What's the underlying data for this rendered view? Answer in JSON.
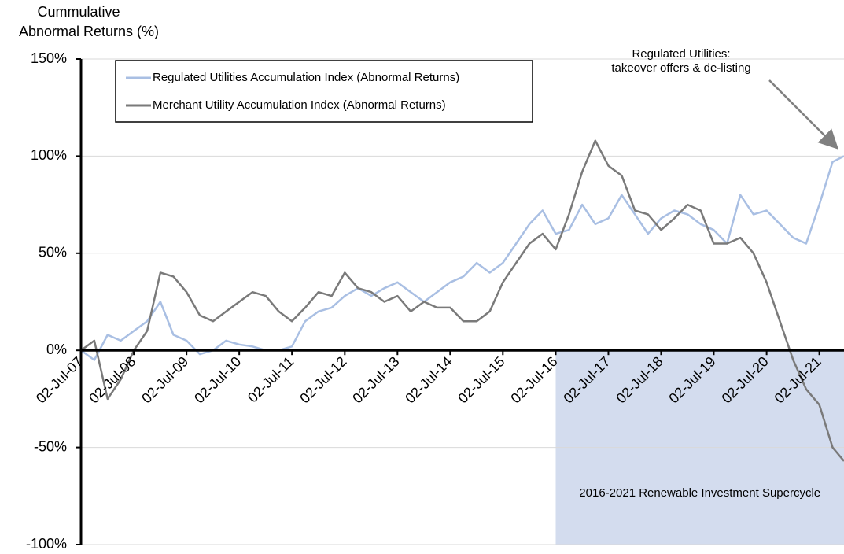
{
  "chart_data": {
    "type": "line",
    "ylabel": [
      "Cummulative",
      "Abnormal Returns (%)"
    ],
    "x": [
      "2007-07-02",
      "2007-10-02",
      "2008-01-02",
      "2008-04-02",
      "2008-07-02",
      "2008-10-02",
      "2009-01-02",
      "2009-04-02",
      "2009-07-02",
      "2009-10-02",
      "2010-01-02",
      "2010-04-02",
      "2010-07-02",
      "2010-10-02",
      "2011-01-02",
      "2011-04-02",
      "2011-07-02",
      "2011-10-02",
      "2012-01-02",
      "2012-04-02",
      "2012-07-02",
      "2012-10-02",
      "2013-01-02",
      "2013-04-02",
      "2013-07-02",
      "2013-10-02",
      "2014-01-02",
      "2014-04-02",
      "2014-07-02",
      "2014-10-02",
      "2015-01-02",
      "2015-04-02",
      "2015-07-02",
      "2015-10-02",
      "2016-01-02",
      "2016-04-02",
      "2016-07-02",
      "2016-10-02",
      "2017-01-02",
      "2017-04-02",
      "2017-07-02",
      "2017-10-02",
      "2018-01-02",
      "2018-04-02",
      "2018-07-02",
      "2018-10-02",
      "2019-01-02",
      "2019-04-02",
      "2019-07-02",
      "2019-10-02",
      "2020-01-02",
      "2020-04-02",
      "2020-07-02",
      "2020-10-02",
      "2021-01-02",
      "2021-04-02",
      "2021-07-02",
      "2021-10-02",
      "2021-12-20"
    ],
    "series": [
      {
        "name": "Regulated Utilities Accumulation Index (Abnormal Returns)",
        "color": "#a9bfe3",
        "values": [
          0,
          -5,
          8,
          5,
          10,
          15,
          25,
          8,
          5,
          -2,
          0,
          5,
          3,
          2,
          0,
          0,
          2,
          15,
          20,
          22,
          28,
          32,
          28,
          32,
          35,
          30,
          25,
          30,
          35,
          38,
          45,
          40,
          45,
          55,
          65,
          72,
          60,
          62,
          75,
          65,
          68,
          80,
          70,
          60,
          68,
          72,
          70,
          65,
          62,
          55,
          80,
          70,
          72,
          65,
          58,
          55,
          75,
          97,
          100
        ]
      },
      {
        "name": "Merchant Utility Accumulation Index (Abnormal Returns)",
        "color": "#7a7a7a",
        "values": [
          0,
          5,
          -25,
          -15,
          0,
          10,
          40,
          38,
          30,
          18,
          15,
          20,
          25,
          30,
          28,
          20,
          15,
          22,
          30,
          28,
          40,
          32,
          30,
          25,
          28,
          20,
          25,
          22,
          22,
          15,
          15,
          20,
          35,
          45,
          55,
          60,
          52,
          70,
          92,
          108,
          95,
          90,
          72,
          70,
          62,
          68,
          75,
          72,
          55,
          55,
          58,
          50,
          35,
          15,
          -5,
          -20,
          -28,
          -50,
          -57
        ]
      }
    ],
    "xlim": [
      "2007-07-02",
      "2021-12-20"
    ],
    "xticks": [
      {
        "value": "2007-07-02",
        "label": "02-Jul-07"
      },
      {
        "value": "2008-07-02",
        "label": "02-Jul-08"
      },
      {
        "value": "2009-07-02",
        "label": "02-Jul-09"
      },
      {
        "value": "2010-07-02",
        "label": "02-Jul-10"
      },
      {
        "value": "2011-07-02",
        "label": "02-Jul-11"
      },
      {
        "value": "2012-07-02",
        "label": "02-Jul-12"
      },
      {
        "value": "2013-07-02",
        "label": "02-Jul-13"
      },
      {
        "value": "2014-07-02",
        "label": "02-Jul-14"
      },
      {
        "value": "2015-07-02",
        "label": "02-Jul-15"
      },
      {
        "value": "2016-07-02",
        "label": "02-Jul-16"
      },
      {
        "value": "2017-07-02",
        "label": "02-Jul-17"
      },
      {
        "value": "2018-07-02",
        "label": "02-Jul-18"
      },
      {
        "value": "2019-07-02",
        "label": "02-Jul-19"
      },
      {
        "value": "2020-07-02",
        "label": "02-Jul-20"
      },
      {
        "value": "2021-07-02",
        "label": "02-Jul-21"
      }
    ],
    "ylim": [
      -100,
      150
    ],
    "yticks": [
      {
        "value": -100,
        "label": "-100%"
      },
      {
        "value": -50,
        "label": "-50%"
      },
      {
        "value": 0,
        "label": "0%"
      },
      {
        "value": 50,
        "label": "50%"
      },
      {
        "value": 100,
        "label": "100%"
      },
      {
        "value": 150,
        "label": "150%"
      }
    ],
    "grid": true,
    "legend": "upper left",
    "span": {
      "from": "2016-07-02",
      "color": "#d3dcee",
      "label": "2016-2021 Renewable Investment Supercycle"
    },
    "annotation": {
      "lines": [
        "Regulated Utilities:",
        "takeover offers & de-listing"
      ],
      "target": [
        "2021-10-02",
        100
      ]
    }
  }
}
